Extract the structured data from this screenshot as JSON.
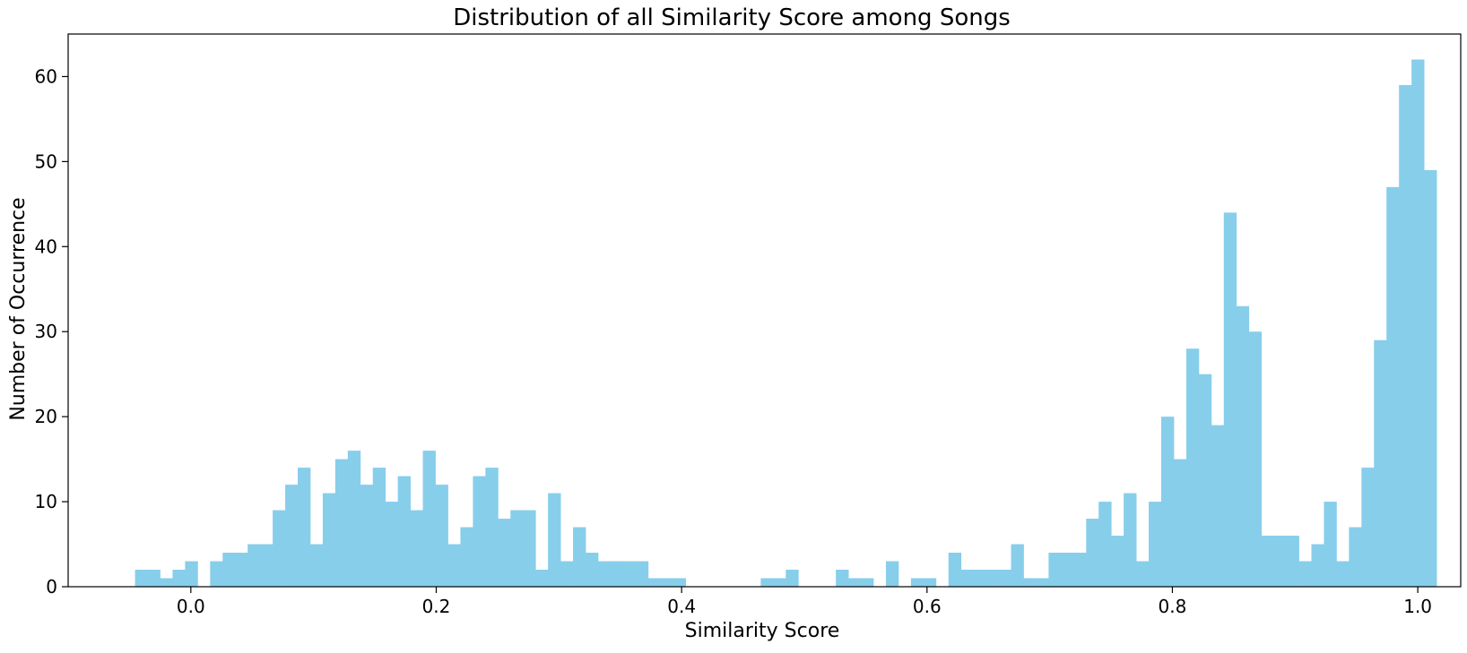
{
  "chart_data": {
    "type": "bar",
    "subtype": "histogram",
    "title": "Distribution of all Similarity Score among Songs",
    "xlabel": "Similarity Score",
    "ylabel": "Number of Occurrence",
    "xlim": [
      -0.1,
      1.035
    ],
    "ylim": [
      0,
      65
    ],
    "bin_start": -0.0455,
    "bin_width": 0.0102,
    "counts": [
      2,
      2,
      1,
      2,
      3,
      0,
      3,
      4,
      4,
      5,
      5,
      9,
      12,
      14,
      5,
      11,
      15,
      16,
      12,
      14,
      10,
      13,
      9,
      16,
      12,
      5,
      7,
      13,
      14,
      8,
      9,
      9,
      2,
      11,
      3,
      7,
      4,
      3,
      3,
      3,
      3,
      1,
      1,
      1,
      0,
      0,
      0,
      0,
      0,
      0,
      1,
      1,
      2,
      0,
      0,
      0,
      2,
      1,
      1,
      0,
      3,
      0,
      1,
      1,
      0,
      4,
      2,
      2,
      2,
      2,
      5,
      1,
      1,
      4,
      4,
      4,
      8,
      10,
      6,
      11,
      3,
      10,
      20,
      15,
      28,
      25,
      19,
      44,
      33,
      30,
      6,
      6,
      6,
      3,
      5,
      10,
      3,
      7,
      14,
      29,
      47,
      59,
      62,
      49
    ],
    "xticks": [
      "0.0",
      "0.2",
      "0.4",
      "0.6",
      "0.8",
      "1.0"
    ],
    "xtick_values": [
      0.0,
      0.2,
      0.4,
      0.6,
      0.8,
      1.0
    ],
    "yticks": [
      "0",
      "10",
      "20",
      "30",
      "40",
      "50",
      "60"
    ],
    "ytick_values": [
      0,
      10,
      20,
      30,
      40,
      50,
      60
    ],
    "bar_color": "#87CEEB",
    "grid": false,
    "legend": "none"
  }
}
